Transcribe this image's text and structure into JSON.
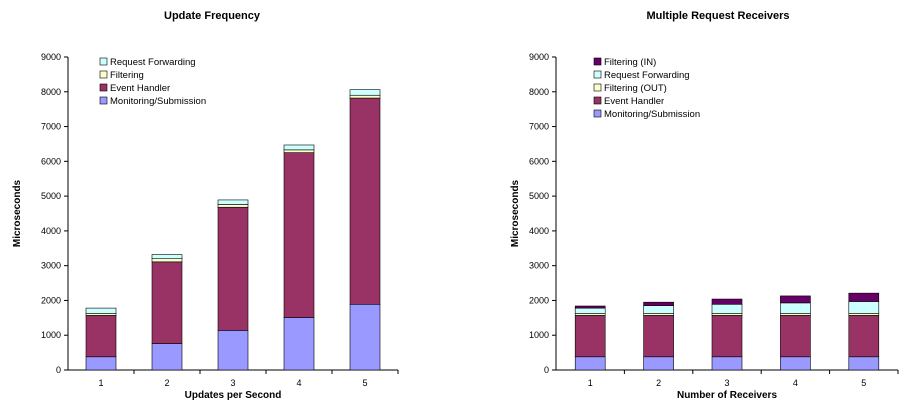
{
  "chart_data": [
    {
      "type": "bar",
      "stacked": true,
      "title": "Update Frequency",
      "xlabel": "Updates per Second",
      "ylabel": "Microseconds",
      "ylim": [
        0,
        9000
      ],
      "yticks": [
        "0",
        "1000",
        "2000",
        "3000",
        "4000",
        "5000",
        "6000",
        "7000",
        "8000",
        "9000"
      ],
      "categories": [
        "1",
        "2",
        "3",
        "4",
        "5"
      ],
      "legend_position": "top-left",
      "series": [
        {
          "name": "Monitoring/Submission",
          "color": "#9999ff",
          "values": [
            380,
            760,
            1140,
            1510,
            1890
          ]
        },
        {
          "name": "Event Handler",
          "color": "#993366",
          "values": [
            1190,
            2350,
            3540,
            4740,
            5930
          ]
        },
        {
          "name": "Filtering",
          "color": "#ffffcc",
          "values": [
            60,
            90,
            80,
            80,
            80
          ]
        },
        {
          "name": "Request Forwarding",
          "color": "#ccffff",
          "values": [
            150,
            120,
            130,
            140,
            160
          ]
        }
      ]
    },
    {
      "type": "bar",
      "stacked": true,
      "title": "Multiple Request Receivers",
      "xlabel": "Number of Receivers",
      "ylabel": "Microseconds",
      "ylim": [
        0,
        9000
      ],
      "yticks": [
        "0",
        "1000",
        "2000",
        "3000",
        "4000",
        "5000",
        "6000",
        "7000",
        "8000",
        "9000"
      ],
      "categories": [
        "1",
        "2",
        "3",
        "4",
        "5"
      ],
      "legend_position": "top-left",
      "series": [
        {
          "name": "Monitoring/Submission",
          "color": "#9999ff",
          "values": [
            380,
            380,
            380,
            380,
            380
          ]
        },
        {
          "name": "Event Handler",
          "color": "#993366",
          "values": [
            1190,
            1190,
            1190,
            1190,
            1190
          ]
        },
        {
          "name": "Filtering (OUT)",
          "color": "#ffffcc",
          "values": [
            60,
            60,
            60,
            60,
            60
          ]
        },
        {
          "name": "Request Forwarding",
          "color": "#ccffff",
          "values": [
            150,
            220,
            260,
            300,
            340
          ]
        },
        {
          "name": "Filtering (IN)",
          "color": "#660066",
          "values": [
            60,
            100,
            150,
            200,
            240
          ]
        }
      ]
    }
  ]
}
